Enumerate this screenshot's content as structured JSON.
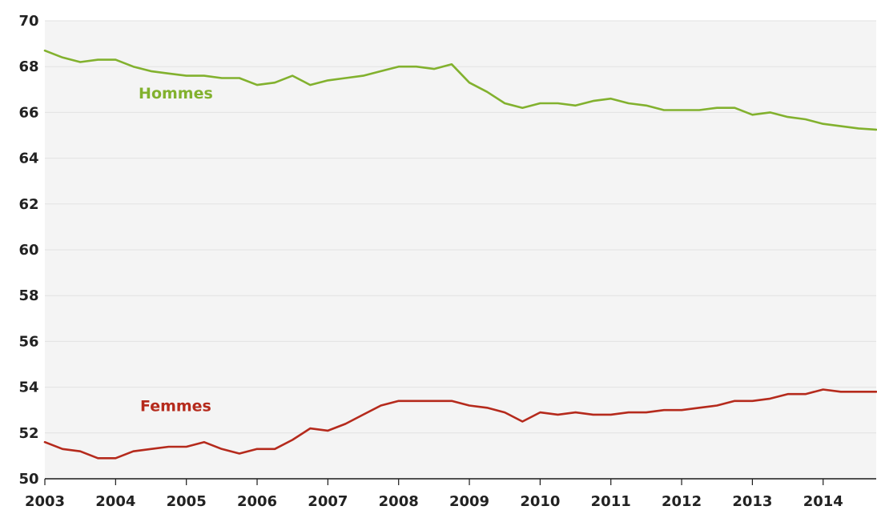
{
  "chart_data": {
    "type": "line",
    "title": "",
    "xlabel": "",
    "ylabel": "",
    "xlim": [
      2003,
      2014.75
    ],
    "ylim": [
      50,
      70
    ],
    "y_ticks": [
      "50",
      "52",
      "54",
      "56",
      "58",
      "60",
      "62",
      "64",
      "66",
      "68",
      "70"
    ],
    "x_ticks": [
      "2003",
      "2004",
      "2005",
      "2006",
      "2007",
      "2008",
      "2009",
      "2010",
      "2011",
      "2012",
      "2013",
      "2014"
    ],
    "grid": "horizontal",
    "colors": {
      "plot_background": "#f4f4f4",
      "grid": "#e2e2e2",
      "axis": "#1a1a1a"
    },
    "series": [
      {
        "name": "Hommes",
        "color": "#82b12e",
        "x": [
          2003.0,
          2003.25,
          2003.5,
          2003.75,
          2004.0,
          2004.25,
          2004.5,
          2004.75,
          2005.0,
          2005.25,
          2005.5,
          2005.75,
          2006.0,
          2006.25,
          2006.5,
          2006.75,
          2007.0,
          2007.25,
          2007.5,
          2007.75,
          2008.0,
          2008.25,
          2008.5,
          2008.75,
          2009.0,
          2009.25,
          2009.5,
          2009.75,
          2010.0,
          2010.25,
          2010.5,
          2010.75,
          2011.0,
          2011.25,
          2011.5,
          2011.75,
          2012.0,
          2012.25,
          2012.5,
          2012.75,
          2013.0,
          2013.25,
          2013.5,
          2013.75,
          2014.0,
          2014.25,
          2014.5,
          2014.75
        ],
        "values": [
          68.7,
          68.4,
          68.2,
          68.3,
          68.3,
          68.0,
          67.8,
          67.7,
          67.6,
          67.6,
          67.5,
          67.5,
          67.2,
          67.3,
          67.6,
          67.2,
          67.4,
          67.5,
          67.6,
          67.8,
          68.0,
          68.0,
          67.9,
          68.1,
          67.3,
          66.9,
          66.4,
          66.2,
          66.4,
          66.4,
          66.3,
          66.5,
          66.6,
          66.4,
          66.3,
          66.1,
          66.1,
          66.1,
          66.2,
          66.2,
          65.9,
          66.0,
          65.8,
          65.7,
          65.5,
          65.4,
          65.3,
          65.25
        ]
      },
      {
        "name": "Femmes",
        "color": "#b52a1c",
        "x": [
          2003.0,
          2003.25,
          2003.5,
          2003.75,
          2004.0,
          2004.25,
          2004.5,
          2004.75,
          2005.0,
          2005.25,
          2005.5,
          2005.75,
          2006.0,
          2006.25,
          2006.5,
          2006.75,
          2007.0,
          2007.25,
          2007.5,
          2007.75,
          2008.0,
          2008.25,
          2008.5,
          2008.75,
          2009.0,
          2009.25,
          2009.5,
          2009.75,
          2010.0,
          2010.25,
          2010.5,
          2010.75,
          2011.0,
          2011.25,
          2011.5,
          2011.75,
          2012.0,
          2012.25,
          2012.5,
          2012.75,
          2013.0,
          2013.25,
          2013.5,
          2013.75,
          2014.0,
          2014.25,
          2014.5,
          2014.75
        ],
        "values": [
          51.6,
          51.3,
          51.2,
          50.9,
          50.9,
          51.2,
          51.3,
          51.4,
          51.4,
          51.6,
          51.3,
          51.1,
          51.3,
          51.3,
          51.7,
          52.2,
          52.1,
          52.4,
          52.8,
          53.2,
          53.4,
          53.4,
          53.4,
          53.4,
          53.2,
          53.1,
          52.9,
          52.5,
          52.9,
          52.8,
          52.9,
          52.8,
          52.8,
          52.9,
          52.9,
          53.0,
          53.0,
          53.1,
          53.2,
          53.4,
          53.4,
          53.5,
          53.7,
          53.7,
          53.9,
          53.8,
          53.8,
          53.8
        ]
      }
    ],
    "annotations": [
      {
        "text": "Hommes",
        "x": 2004.85,
        "y": 66.6,
        "color": "#82b12e"
      },
      {
        "text": "Femmes",
        "x": 2004.85,
        "y": 52.95,
        "color": "#b52a1c"
      }
    ]
  }
}
